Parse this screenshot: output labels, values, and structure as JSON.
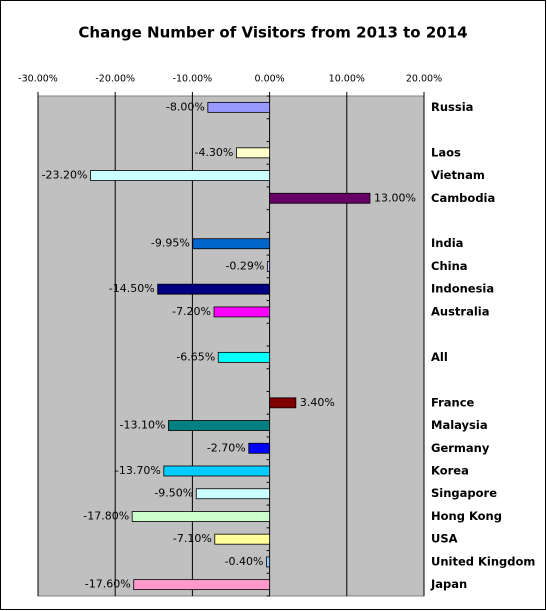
{
  "chart_data": {
    "type": "hbar",
    "title": "Change Number of Visitors from 2013 to 2014",
    "categories": [
      "Russia",
      null,
      "Laos",
      "Vietnam",
      "Cambodia",
      null,
      "India",
      "China",
      "Indonesia",
      "Australia",
      null,
      "All",
      null,
      "France",
      "Malaysia",
      "Germany",
      "Korea",
      "Singapore",
      "Hong Kong",
      "USA",
      "United Kingdom",
      "Japan"
    ],
    "values": [
      -8.0,
      null,
      -4.3,
      -23.2,
      13.0,
      null,
      -9.95,
      -0.29,
      -14.5,
      -7.2,
      null,
      -6.65,
      null,
      3.4,
      -13.1,
      -2.7,
      -13.7,
      -9.5,
      -17.8,
      -7.1,
      -0.4,
      -17.6
    ],
    "value_labels": [
      "-8.00%",
      null,
      "-4.30%",
      "-23.20%",
      "13.00%",
      null,
      "-9.95%",
      "-0.29%",
      "-14.50%",
      "-7.20%",
      null,
      "-6.65%",
      null,
      "3.40%",
      "-13.10%",
      "-2.70%",
      "-13.70%",
      "-9.50%",
      "-17.80%",
      "-7.10%",
      "-0.40%",
      "-17.60%"
    ],
    "colors": [
      "#9999ff",
      null,
      "#ffffcc",
      "#ccffff",
      "#660066",
      null,
      "#0066cc",
      "#ccccff",
      "#000080",
      "#ff00ff",
      null,
      "#00ffff",
      null,
      "#800000",
      "#008080",
      "#0000ff",
      "#00ccff",
      "#ccffff",
      "#ccffcc",
      "#ffff99",
      "#99ccff",
      "#ff99cc"
    ],
    "xlim": [
      -30,
      20
    ],
    "xticks": [
      {
        "value": -30,
        "label": "-30.00%"
      },
      {
        "value": -20,
        "label": "-20.00%"
      },
      {
        "value": -10,
        "label": "-10.00%"
      },
      {
        "value": 0,
        "label": "0.00%"
      },
      {
        "value": 10,
        "label": "10.00%"
      },
      {
        "value": 20,
        "label": "20.00%"
      }
    ],
    "grid": true
  }
}
